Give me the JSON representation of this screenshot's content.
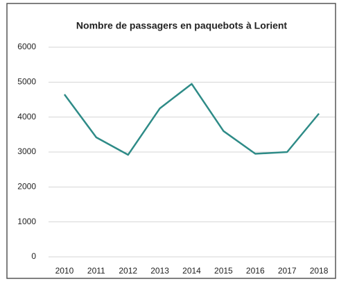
{
  "chart_data": {
    "type": "line",
    "title": "Nombre de passagers en paquebots à Lorient",
    "categories": [
      "2010",
      "2011",
      "2012",
      "2013",
      "2014",
      "2015",
      "2016",
      "2017",
      "2018"
    ],
    "values": [
      4650,
      3420,
      2920,
      4250,
      4950,
      3600,
      2950,
      3000,
      4100
    ],
    "color": "#2e8b87",
    "ylim": [
      0,
      6000
    ],
    "yticks": [
      0,
      1000,
      2000,
      3000,
      4000,
      5000,
      6000
    ],
    "grid": true
  }
}
